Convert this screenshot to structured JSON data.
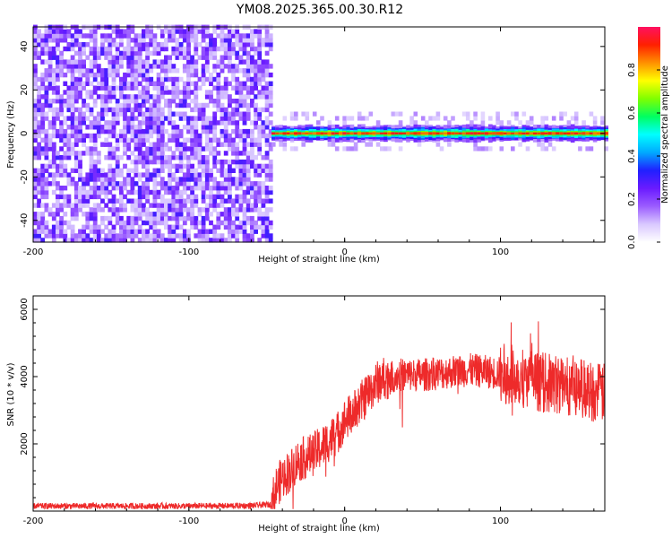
{
  "title": "YM08.2025.365.00.30.R12",
  "colors": {
    "trace": "#ee2a2a",
    "axis": "#000000",
    "background": "#ffffff"
  },
  "chart_data": [
    {
      "type": "heatmap",
      "xlabel": "Height of straight line (km)",
      "ylabel": "Frequency (Hz)",
      "xlim": [
        -200,
        167
      ],
      "ylim": [
        -50,
        49
      ],
      "x_ticks": [
        -200,
        -100,
        0,
        100
      ],
      "y_ticks": [
        -40,
        -20,
        0,
        20,
        40
      ],
      "noise_region_km": [
        -200,
        -47
      ],
      "signal_band_hz": [
        -2,
        2
      ],
      "colorbar": {
        "label": "Normalized spectral amplitude",
        "range": [
          0,
          1
        ],
        "ticks": [
          "0.0",
          "0.2",
          "0.4",
          "0.6",
          "0.8"
        ],
        "colormap": [
          "#ffffff",
          "#d9c8ff",
          "#9b5cff",
          "#6a1bff",
          "#2020ff",
          "#00aaff",
          "#00ffff",
          "#00ff60",
          "#80ff00",
          "#ffff00",
          "#ff9000",
          "#ff2000",
          "#ff1060"
        ]
      }
    },
    {
      "type": "line",
      "xlabel": "Height of straight line (km)",
      "ylabel": "SNR (10 * v/v)",
      "xlim": [
        -200,
        167
      ],
      "ylim": [
        0,
        6400
      ],
      "x_ticks": [
        -200,
        -100,
        0,
        100
      ],
      "y_ticks": [
        2000,
        4000,
        6000
      ],
      "series": [
        {
          "name": "SNR",
          "x": [
            -200,
            -150,
            -100,
            -60,
            -47,
            -44,
            -40,
            -35,
            -30,
            -25,
            -20,
            -15,
            -10,
            -5,
            0,
            5,
            10,
            15,
            20,
            25,
            30,
            35,
            40,
            50,
            60,
            70,
            80,
            90,
            100,
            110,
            115,
            120,
            125,
            130,
            140,
            150,
            160,
            167
          ],
          "values": [
            150,
            150,
            150,
            160,
            200,
            700,
            1000,
            1200,
            1500,
            1600,
            1700,
            1900,
            2100,
            2300,
            2700,
            2900,
            3200,
            3500,
            3800,
            3950,
            4000,
            4050,
            4050,
            4050,
            4100,
            4150,
            4200,
            4150,
            4100,
            4050,
            3950,
            3900,
            3850,
            3800,
            3750,
            3700,
            3550,
            3500
          ]
        }
      ]
    }
  ]
}
